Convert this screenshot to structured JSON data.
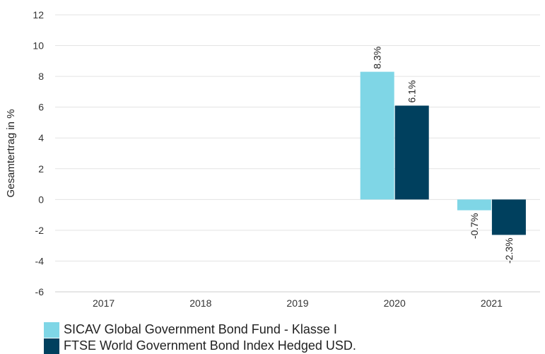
{
  "chart_data": {
    "type": "bar",
    "title": "",
    "xlabel": "",
    "ylabel": "Gesamtertrag in %",
    "ylim": [
      -6,
      12
    ],
    "yticks": [
      -6,
      -4,
      -2,
      0,
      2,
      4,
      6,
      8,
      10,
      12
    ],
    "grid": true,
    "legend_position": "bottom-left",
    "categories": [
      "2017",
      "2018",
      "2019",
      "2020",
      "2021"
    ],
    "series": [
      {
        "name": "SICAV Global Government Bond Fund - Klasse I",
        "color": "#7fd6e6",
        "values": [
          null,
          null,
          null,
          8.3,
          -0.7
        ],
        "labels": [
          null,
          null,
          null,
          "8.3%",
          "-0.7%"
        ]
      },
      {
        "name": "FTSE World Government Bond Index Hedged USD.",
        "color": "#00405e",
        "values": [
          null,
          null,
          null,
          6.1,
          -2.3
        ],
        "labels": [
          null,
          null,
          null,
          "6.1%",
          "-2.3%"
        ]
      }
    ]
  }
}
